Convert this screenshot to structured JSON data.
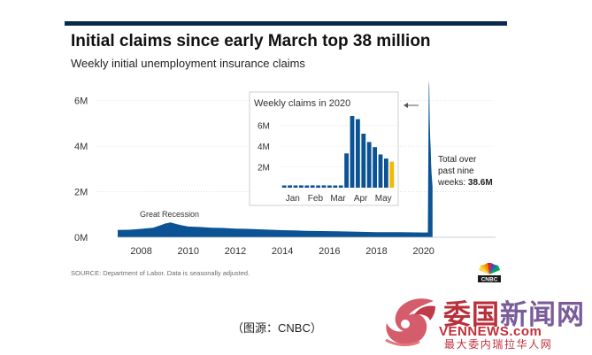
{
  "title": "Initial claims since early March top 38 million",
  "subtitle": "Weekly initial unemployment insurance claims",
  "source": "SOURCE: Department of Labor. Data is seasonally adjusted.",
  "caption": "（图源：CNBC）",
  "annotation": {
    "line1": "Total over",
    "line2": "past nine",
    "line3_prefix": "weeks: ",
    "line3_value": "38.6M"
  },
  "colors": {
    "bar": "#0b5394",
    "highlight": "#f5b800",
    "grid": "#d9d9d9",
    "top_bar": "#0a2a4a"
  },
  "logo": {
    "name": "cnbc-peacock-icon",
    "text": "CNBC"
  },
  "watermark": {
    "title_part1": "委国",
    "title_part2": "新闻网",
    "url": "VENNEWS.com",
    "tagline": "最大委内瑞拉华人网"
  },
  "chart_data": [
    {
      "type": "area",
      "ylabel": "",
      "xlabel": "",
      "yticks": [
        0,
        2,
        4,
        6
      ],
      "ytick_labels": [
        "0M",
        "2M",
        "4M",
        "6M"
      ],
      "xticks": [
        2008,
        2010,
        2012,
        2014,
        2016,
        2018,
        2020
      ],
      "xtick_labels": [
        "2008",
        "2010",
        "2012",
        "2014",
        "2016",
        "2018",
        "2020"
      ],
      "xlim": [
        2007.0,
        2020.5
      ],
      "ylim": [
        0,
        7
      ],
      "unit": "million claims per week",
      "annotations": [
        {
          "text": "Great Recession",
          "x": 2009.2,
          "y": 0.65
        }
      ],
      "x": [
        2007.0,
        2007.5,
        2008.0,
        2008.5,
        2008.8,
        2009.0,
        2009.25,
        2009.5,
        2009.75,
        2010.0,
        2010.5,
        2011.0,
        2011.5,
        2012.0,
        2012.5,
        2013.0,
        2013.5,
        2014.0,
        2014.5,
        2015.0,
        2016.0,
        2017.0,
        2018.0,
        2019.0,
        2020.0,
        2020.18,
        2020.2,
        2020.22,
        2020.24,
        2020.26,
        2020.28,
        2020.3,
        2020.32,
        2020.34,
        2020.36,
        2020.38
      ],
      "y": [
        0.32,
        0.33,
        0.37,
        0.42,
        0.52,
        0.6,
        0.65,
        0.58,
        0.52,
        0.47,
        0.45,
        0.42,
        0.41,
        0.38,
        0.37,
        0.35,
        0.33,
        0.31,
        0.3,
        0.28,
        0.27,
        0.25,
        0.22,
        0.22,
        0.21,
        0.21,
        3.3,
        6.9,
        6.6,
        5.2,
        4.4,
        3.9,
        3.2,
        2.8,
        2.5,
        2.2
      ]
    },
    {
      "type": "bar",
      "title": "Weekly claims in 2020",
      "ytick_labels": [
        "2M",
        "4M",
        "6M"
      ],
      "yticks": [
        2,
        4,
        6
      ],
      "ylim": [
        0,
        7.5
      ],
      "month_labels": [
        "Jan",
        "Feb",
        "Mar",
        "Apr",
        "May"
      ],
      "values": [
        0.21,
        0.22,
        0.21,
        0.22,
        0.21,
        0.22,
        0.21,
        0.22,
        0.21,
        0.21,
        0.21,
        3.3,
        6.9,
        6.6,
        5.2,
        4.4,
        3.9,
        3.2,
        2.8,
        2.5
      ],
      "highlight_last": true
    }
  ]
}
